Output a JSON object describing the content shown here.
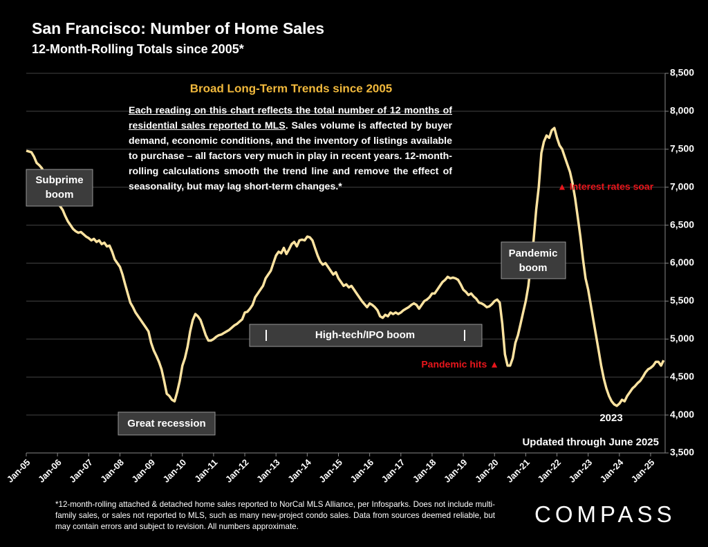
{
  "chart_data": {
    "type": "line",
    "title": "San Francisco:  Number of Home Sales",
    "subtitle": "12-Month-Rolling Totals since 2005*",
    "color": "#fde3a0",
    "grid": true,
    "ylim": [
      3500,
      8500
    ],
    "yticks": [
      {
        "value": 3500,
        "label": "3,500"
      },
      {
        "value": 4000,
        "label": "4,000"
      },
      {
        "value": 4500,
        "label": "4,500"
      },
      {
        "value": 5000,
        "label": "5,000"
      },
      {
        "value": 5500,
        "label": "5,500"
      },
      {
        "value": 6000,
        "label": "6,000"
      },
      {
        "value": 6500,
        "label": "6,500"
      },
      {
        "value": 7000,
        "label": "7,000"
      },
      {
        "value": 7500,
        "label": "7,500"
      },
      {
        "value": 8000,
        "label": "8,000"
      },
      {
        "value": 8500,
        "label": "8,500"
      }
    ],
    "categories": [
      "Jan-05",
      null,
      null,
      null,
      null,
      null,
      null,
      null,
      null,
      null,
      null,
      null,
      "Jan-06",
      null,
      null,
      null,
      null,
      null,
      null,
      null,
      null,
      null,
      null,
      null,
      "Jan-07",
      null,
      null,
      null,
      null,
      null,
      null,
      null,
      null,
      null,
      null,
      null,
      "Jan-08",
      null,
      null,
      null,
      null,
      null,
      null,
      null,
      null,
      null,
      null,
      null,
      "Jan-09",
      null,
      null,
      null,
      null,
      null,
      null,
      null,
      null,
      null,
      null,
      null,
      "Jan-10",
      null,
      null,
      null,
      null,
      null,
      null,
      null,
      null,
      null,
      null,
      null,
      "Jan-11",
      null,
      null,
      null,
      null,
      null,
      null,
      null,
      null,
      null,
      null,
      null,
      "Jan-12",
      null,
      null,
      null,
      null,
      null,
      null,
      null,
      null,
      null,
      null,
      null,
      "Jan-13",
      null,
      null,
      null,
      null,
      null,
      null,
      null,
      null,
      null,
      null,
      null,
      "Jan-14",
      null,
      null,
      null,
      null,
      null,
      null,
      null,
      null,
      null,
      null,
      null,
      "Jan-15",
      null,
      null,
      null,
      null,
      null,
      null,
      null,
      null,
      null,
      null,
      null,
      "Jan-16",
      null,
      null,
      null,
      null,
      null,
      null,
      null,
      null,
      null,
      null,
      null,
      "Jan-17",
      null,
      null,
      null,
      null,
      null,
      null,
      null,
      null,
      null,
      null,
      null,
      "Jan-18",
      null,
      null,
      null,
      null,
      null,
      null,
      null,
      null,
      null,
      null,
      null,
      "Jan-19",
      null,
      null,
      null,
      null,
      null,
      null,
      null,
      null,
      null,
      null,
      null,
      "Jan-20",
      null,
      null,
      null,
      null,
      null,
      null,
      null,
      null,
      null,
      null,
      null,
      "Jan-21",
      null,
      null,
      null,
      null,
      null,
      null,
      null,
      null,
      null,
      null,
      null,
      "Jan-22",
      null,
      null,
      null,
      null,
      null,
      null,
      null,
      null,
      null,
      null,
      null,
      "Jan-23",
      null,
      null,
      null,
      null,
      null,
      null,
      null,
      null,
      null,
      null,
      null,
      "Jan-24",
      null,
      null,
      null,
      null,
      null,
      null,
      null,
      null,
      null,
      null,
      null,
      "Jan-25",
      null,
      null,
      null,
      null,
      null
    ],
    "values": [
      7480,
      7470,
      7460,
      7400,
      7320,
      7290,
      7250,
      7180,
      7100,
      7020,
      6950,
      6880,
      6820,
      6750,
      6700,
      6620,
      6550,
      6500,
      6450,
      6420,
      6400,
      6410,
      6380,
      6350,
      6330,
      6300,
      6320,
      6280,
      6300,
      6250,
      6270,
      6220,
      6230,
      6150,
      6050,
      6000,
      5950,
      5850,
      5720,
      5600,
      5480,
      5420,
      5350,
      5300,
      5250,
      5200,
      5150,
      5100,
      4950,
      4850,
      4780,
      4700,
      4600,
      4450,
      4280,
      4250,
      4200,
      4180,
      4300,
      4450,
      4650,
      4750,
      4900,
      5100,
      5250,
      5330,
      5300,
      5250,
      5150,
      5050,
      4980,
      4980,
      5000,
      5030,
      5050,
      5060,
      5080,
      5100,
      5120,
      5150,
      5180,
      5200,
      5230,
      5260,
      5350,
      5360,
      5400,
      5450,
      5550,
      5600,
      5650,
      5700,
      5800,
      5850,
      5900,
      6000,
      6100,
      6150,
      6130,
      6200,
      6120,
      6180,
      6250,
      6280,
      6220,
      6300,
      6310,
      6300,
      6350,
      6340,
      6300,
      6200,
      6100,
      6020,
      5980,
      6000,
      5950,
      5900,
      5850,
      5880,
      5800,
      5750,
      5700,
      5720,
      5680,
      5700,
      5650,
      5600,
      5550,
      5500,
      5460,
      5420,
      5470,
      5450,
      5420,
      5380,
      5300,
      5280,
      5320,
      5300,
      5350,
      5330,
      5350,
      5330,
      5350,
      5380,
      5400,
      5420,
      5450,
      5470,
      5450,
      5400,
      5450,
      5500,
      5520,
      5550,
      5600,
      5600,
      5650,
      5700,
      5750,
      5780,
      5820,
      5800,
      5810,
      5800,
      5780,
      5720,
      5650,
      5620,
      5580,
      5600,
      5560,
      5530,
      5480,
      5470,
      5450,
      5420,
      5430,
      5460,
      5500,
      5520,
      5480,
      5200,
      4800,
      4650,
      4650,
      4750,
      4950,
      5050,
      5200,
      5350,
      5500,
      5700,
      6000,
      6300,
      6700,
      7000,
      7450,
      7600,
      7680,
      7650,
      7750,
      7780,
      7650,
      7550,
      7500,
      7400,
      7300,
      7200,
      7050,
      6850,
      6600,
      6350,
      6050,
      5800,
      5650,
      5450,
      5250,
      5050,
      4850,
      4650,
      4480,
      4350,
      4250,
      4180,
      4140,
      4120,
      4150,
      4200,
      4180,
      4250,
      4300,
      4350,
      4380,
      4420,
      4450,
      4500,
      4560,
      4600,
      4620,
      4650,
      4700,
      4700,
      4650,
      4720
    ],
    "annotations": {
      "box_title": "Broad Long-Term Trends since 2005",
      "box_text_underlined": "Each reading on this chart reflects the total number of 12 months of residential sales reported to MLS",
      "box_text": ". Sales volume is affected by buyer demand, economic conditions, and the inventory of listings available to purchase – all factors very much in play in recent years. 12-month-rolling calculations smooth the trend line and remove the effect of seasonality, but may lag short-term changes.*",
      "subprime": [
        "Subprime",
        "boom"
      ],
      "recession": "Great recession",
      "hightech": "High-tech/IPO boom",
      "pandemic_boom": [
        "Pandemic",
        "boom"
      ],
      "pandemic_hits": "Pandemic hits ▲",
      "rates": "▲ Interest rates soar",
      "low": "2023",
      "updated": "Updated through June 2025"
    },
    "footnote": "*12-month-rolling attached & detached home sales reported to NorCal MLS Alliance, per Infosparks. Does not include multi-family sales, or sales not reported to MLS, such as many new-project condo sales. Data from sources deemed reliable, but may contain errors and subject to revision. All numbers approximate.",
    "logo": "COMPASS"
  }
}
